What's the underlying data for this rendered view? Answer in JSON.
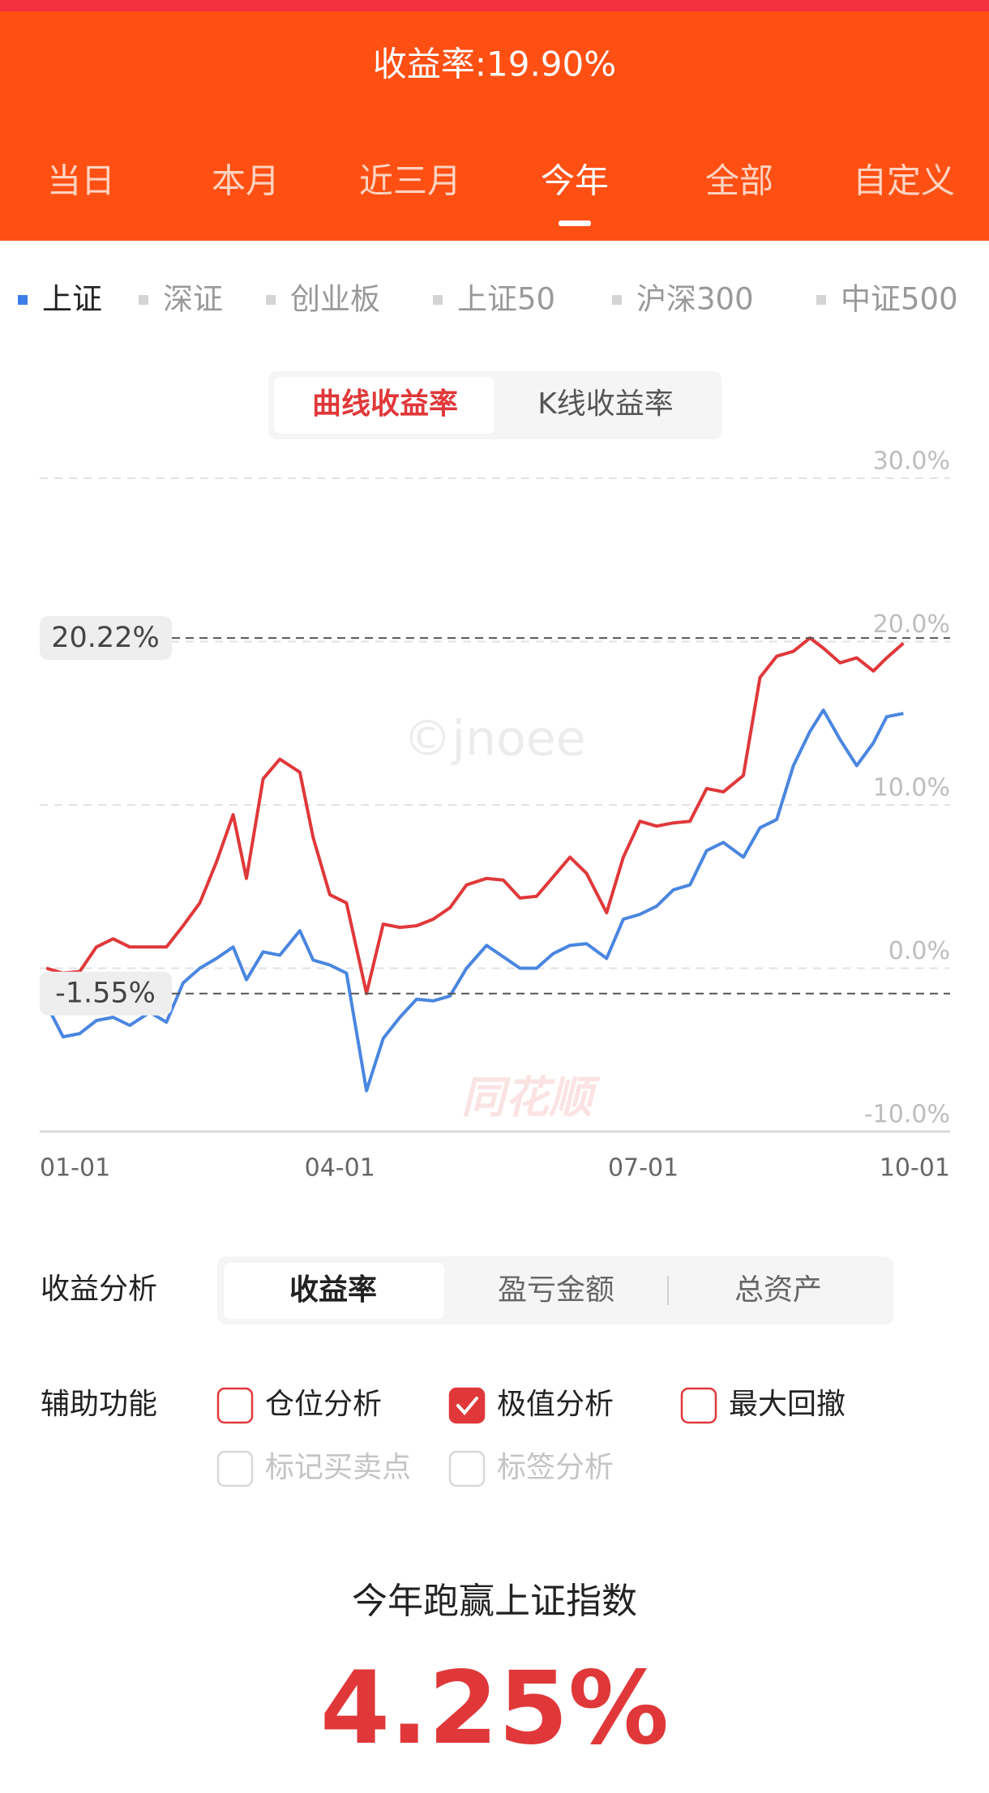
{
  "header": {
    "title": "收益率:19.90%"
  },
  "period_tabs": {
    "items": [
      "当日",
      "本月",
      "近三月",
      "今年",
      "全部",
      "自定义"
    ],
    "active": 3
  },
  "index_tabs": {
    "items": [
      "上证",
      "深证",
      "创业板",
      "上证50",
      "沪深300",
      "中证500"
    ],
    "active": 0
  },
  "chart_mode": {
    "items": [
      "曲线收益率",
      "K线收益率"
    ],
    "active": 0
  },
  "chart_data": {
    "type": "line",
    "x": [
      "01-03",
      "01-08",
      "01-13",
      "01-18",
      "01-23",
      "01-28",
      "02-03",
      "02-08",
      "02-13",
      "02-18",
      "02-23",
      "02-28",
      "03-04",
      "03-09",
      "03-14",
      "03-20",
      "03-24",
      "03-29",
      "04-03",
      "04-09",
      "04-14",
      "04-19",
      "04-24",
      "04-29",
      "05-04",
      "05-09",
      "05-15",
      "05-20",
      "05-25",
      "05-30",
      "06-04",
      "06-09",
      "06-14",
      "06-20",
      "06-25",
      "06-30",
      "07-05",
      "07-10",
      "07-15",
      "07-20",
      "07-25",
      "07-31",
      "08-05",
      "08-10",
      "08-15",
      "08-20",
      "08-24",
      "08-29",
      "09-03",
      "09-08",
      "09-12",
      "09-17"
    ],
    "series": [
      {
        "color": "#e0383a",
        "values": [
          0.0,
          -0.3,
          -0.2,
          1.3,
          1.8,
          1.3,
          1.3,
          1.3,
          2.6,
          4.0,
          6.5,
          9.4,
          5.5,
          11.6,
          12.8,
          12.0,
          8.0,
          4.5,
          4.0,
          -1.55,
          2.7,
          2.5,
          2.6,
          3.0,
          3.7,
          5.1,
          5.5,
          5.4,
          4.3,
          4.4,
          5.6,
          6.8,
          5.8,
          3.4,
          6.8,
          9.0,
          8.7,
          8.9,
          9.0,
          11.0,
          10.8,
          11.8,
          17.8,
          19.1,
          19.4,
          20.22,
          19.6,
          18.7,
          19.0,
          18.2,
          19.0,
          19.9
        ]
      },
      {
        "color": "#4a86e0",
        "values": [
          -2.2,
          -4.2,
          -4.0,
          -3.2,
          -3.0,
          -3.5,
          -2.7,
          -3.3,
          -0.9,
          0.0,
          0.6,
          1.3,
          -0.7,
          1.0,
          0.8,
          2.3,
          0.5,
          0.2,
          -0.3,
          -7.5,
          -4.3,
          -3.0,
          -1.9,
          -2.0,
          -1.7,
          0.0,
          1.4,
          0.7,
          0.0,
          0.0,
          0.9,
          1.4,
          1.5,
          0.6,
          3.0,
          3.3,
          3.8,
          4.8,
          5.1,
          7.2,
          7.7,
          6.8,
          8.6,
          9.1,
          12.4,
          14.5,
          15.8,
          14.0,
          12.4,
          13.8,
          15.4,
          15.6
        ]
      }
    ],
    "xlim": [
      "01-01",
      "10-01"
    ],
    "xticks": [
      "01-01",
      "04-01",
      "07-01",
      "10-01"
    ],
    "ylim": [
      -10,
      30
    ],
    "yticks": [
      {
        "value": -10,
        "label": "-10.0%"
      },
      {
        "value": 0,
        "label": "0.0%"
      },
      {
        "value": 10,
        "label": "10.0%"
      },
      {
        "value": 20,
        "label": "20.0%"
      },
      {
        "value": 30,
        "label": "30.0%"
      }
    ],
    "grid": true,
    "annotations": [
      {
        "value": 20.22,
        "label": "20.22%"
      },
      {
        "value": -1.55,
        "label": "-1.55%"
      }
    ],
    "watermarks": [
      "©jnoee",
      "同花顺"
    ]
  },
  "analysis": {
    "label": "收益分析",
    "items": [
      "收益率",
      "盈亏金额",
      "总资产"
    ],
    "active": 0
  },
  "aux": {
    "label": "辅助功能",
    "options": [
      {
        "label": "仓位分析",
        "checked": false,
        "enabled": true
      },
      {
        "label": "极值分析",
        "checked": true,
        "enabled": true
      },
      {
        "label": "最大回撤",
        "checked": false,
        "enabled": true
      },
      {
        "label": "标记买卖点",
        "checked": false,
        "enabled": false
      },
      {
        "label": "标签分析",
        "checked": false,
        "enabled": false
      }
    ]
  },
  "summary": {
    "title": "今年跑赢上证指数",
    "value": "4.25%"
  }
}
